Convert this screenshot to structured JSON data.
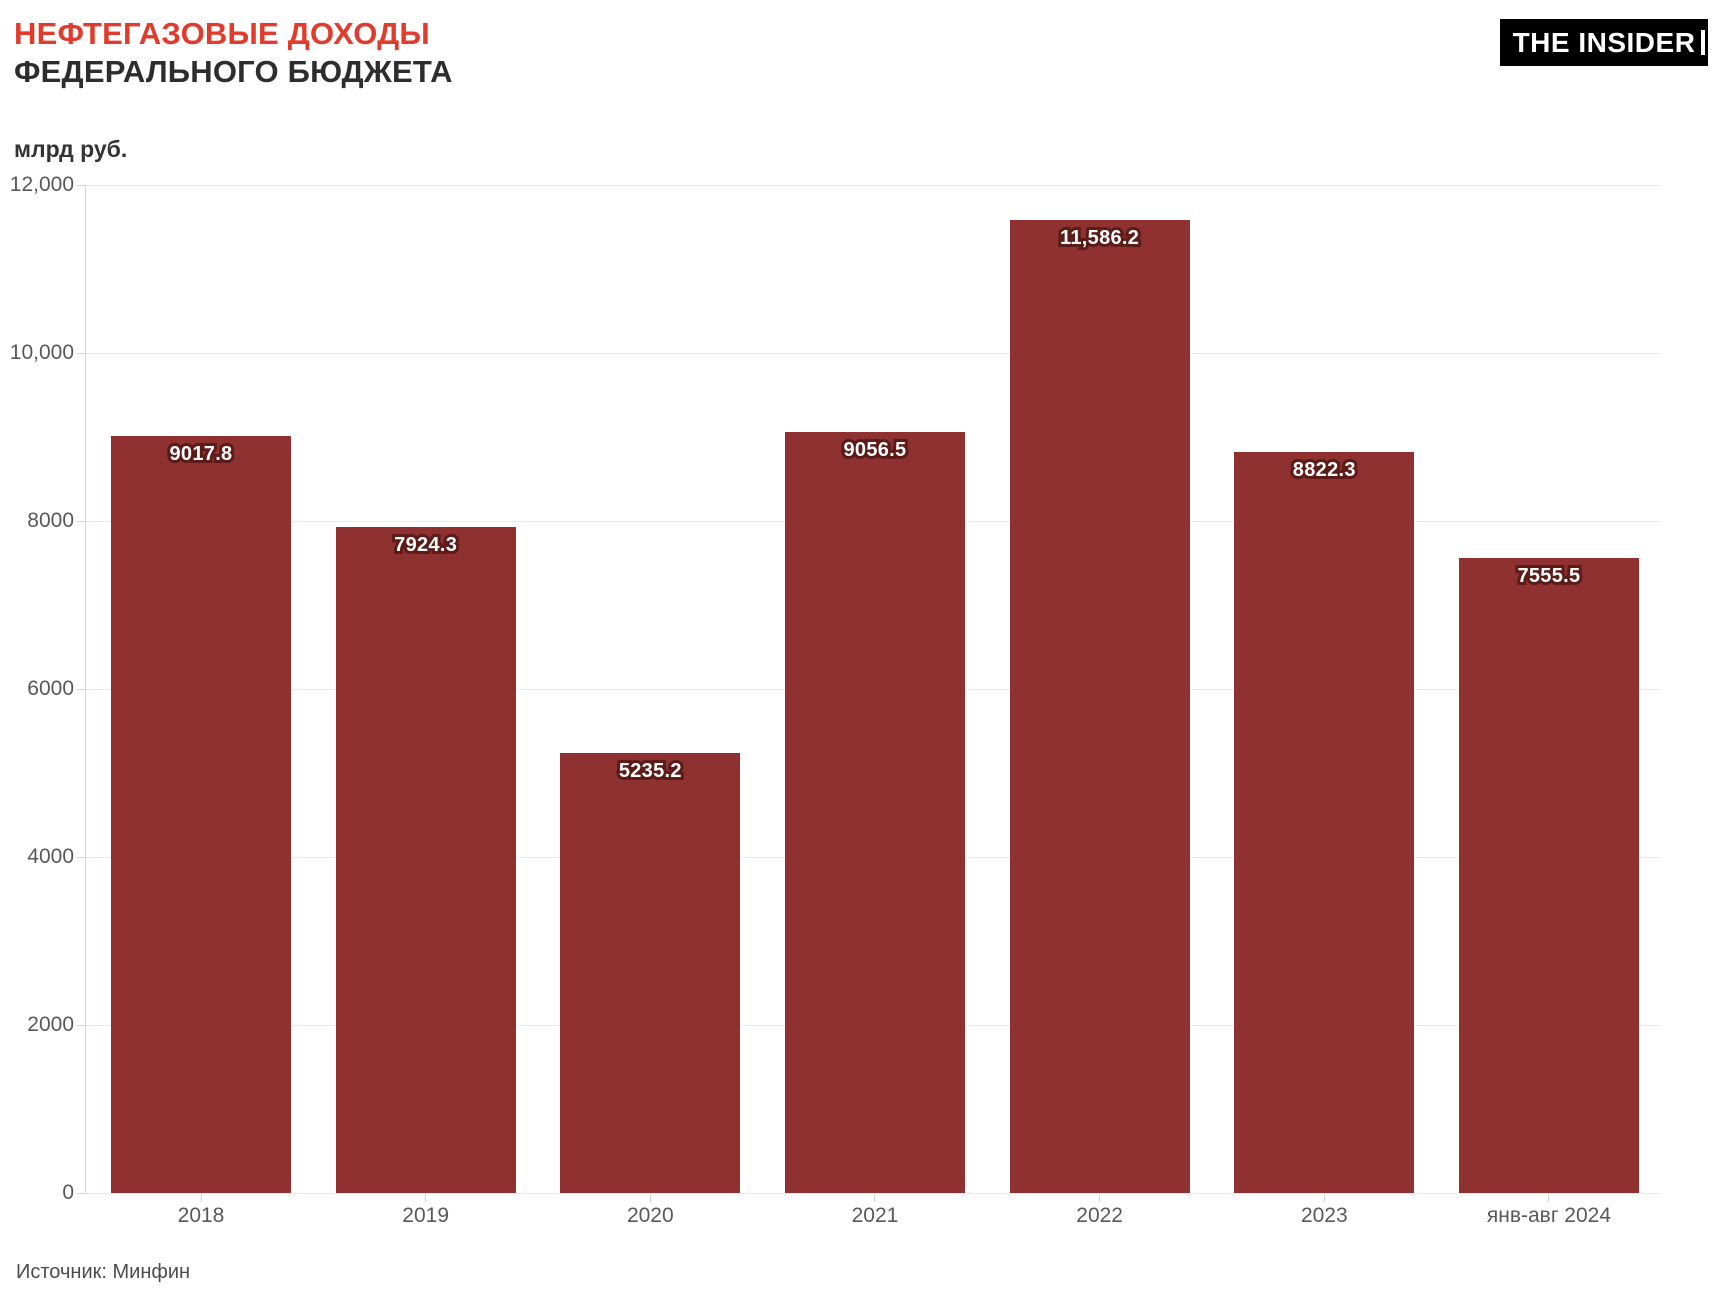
{
  "header": {
    "title_line1": "НЕФТЕГАЗОВЫЕ ДОХОДЫ",
    "title_line2": "ФЕДЕРАЛЬНОГО БЮДЖЕТА",
    "logo_text": "THE INSIDER"
  },
  "footer": {
    "source": "Источник: Минфин"
  },
  "colors": {
    "title_accent": "#e13b2e",
    "title_dark": "#2d2d2d",
    "bar_fill": "#8e3130",
    "value_label_text": "#ffffff",
    "value_label_outline": "#5c1a18",
    "gridline": "#e9e9e6",
    "axis_line": "#d6d6d3",
    "tick_label": "#595959",
    "logo_bg": "#000000",
    "logo_text_color": "#ffffff"
  },
  "chart_data": {
    "type": "bar",
    "title": "НЕФТЕГАЗОВЫЕ ДОХОДЫ ФЕДЕРАЛЬНОГО БЮДЖЕТА",
    "unit_label": "млрд руб.",
    "categories": [
      "2018",
      "2019",
      "2020",
      "2021",
      "2022",
      "2023",
      "янв-авг 2024"
    ],
    "values": [
      9017.8,
      7924.3,
      5235.2,
      9056.5,
      11586.2,
      8822.3,
      7555.5
    ],
    "value_labels": [
      "9017.8",
      "7924.3",
      "5235.2",
      "9056.5",
      "11,586.2",
      "8822.3",
      "7555.5"
    ],
    "ylim": [
      0,
      12000
    ],
    "yticks": [
      {
        "value": 0,
        "label": "0"
      },
      {
        "value": 2000,
        "label": "2000"
      },
      {
        "value": 4000,
        "label": "4000"
      },
      {
        "value": 6000,
        "label": "6000"
      },
      {
        "value": 8000,
        "label": "8000"
      },
      {
        "value": 10000,
        "label": "10,000"
      },
      {
        "value": 12000,
        "label": "12,000"
      }
    ],
    "grid": true,
    "legend": "none",
    "source": "Источник: Минфин"
  }
}
